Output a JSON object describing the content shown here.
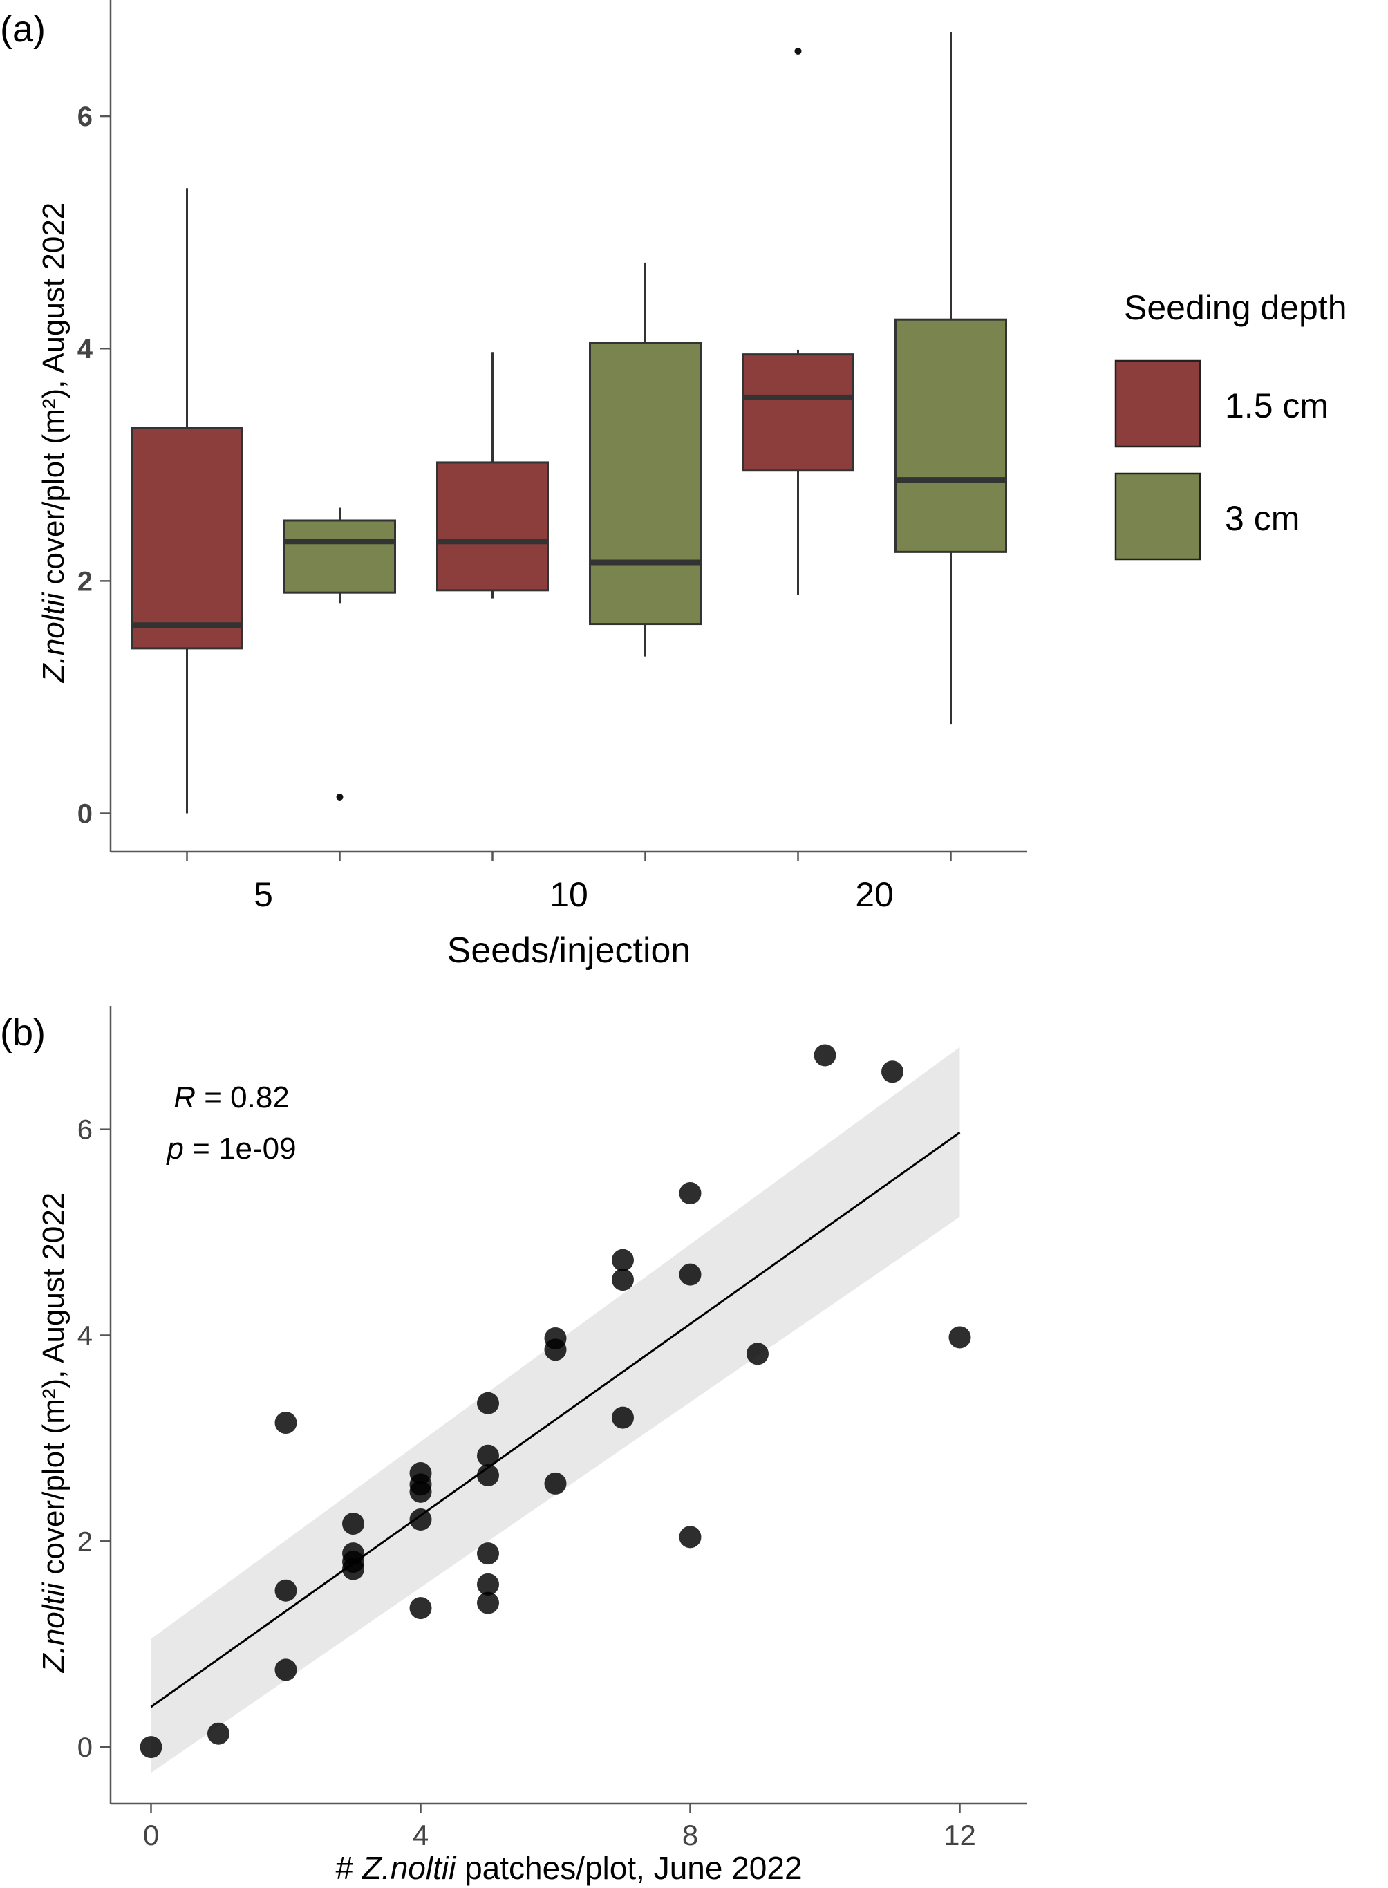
{
  "panel_a": {
    "tag": "(a)",
    "ylabel_italic": "Z.noltii",
    "ylabel_rest": " cover/plot (m²), August 2022",
    "xlabel": "Seeds/injection",
    "legend_title": "Seeding depth",
    "colors": {
      "1.5 cm": "#8b3e3c",
      "3 cm": "#7a844e"
    }
  },
  "panel_b": {
    "tag": "(b)",
    "ylabel_italic": "Z.noltii",
    "ylabel_rest": " cover/plot (m²), August 2022",
    "xlabel_prefix": "# ",
    "xlabel_italic": "Z.noltii",
    "xlabel_rest": " patches/plot, June 2022",
    "r_label": "R",
    "r_value": " = 0.82",
    "p_label": "p",
    "p_value": " = 1e-09"
  },
  "chart_data": [
    {
      "type": "box",
      "title": "",
      "xlabel": "Seeds/injection",
      "ylabel": "Z.noltii cover/plot (m²), August 2022",
      "categories": [
        "5",
        "10",
        "20"
      ],
      "yticks": [
        0,
        2,
        4,
        6
      ],
      "ylim": [
        -0.33,
        7.0
      ],
      "legend": {
        "title": "Seeding depth",
        "position": "right",
        "entries": [
          "1.5 cm",
          "3 cm"
        ]
      },
      "grid": false,
      "series": [
        {
          "name": "1.5 cm",
          "boxes": [
            {
              "category": "5",
              "min": 0.0,
              "q1": 1.42,
              "median": 1.62,
              "q3": 3.32,
              "max": 5.38,
              "outliers": []
            },
            {
              "category": "10",
              "min": 1.85,
              "q1": 1.92,
              "median": 2.34,
              "q3": 3.02,
              "max": 3.97,
              "outliers": []
            },
            {
              "category": "20",
              "min": 1.88,
              "q1": 2.95,
              "median": 3.58,
              "q3": 3.95,
              "max": 3.99,
              "outliers": [
                6.56
              ]
            }
          ]
        },
        {
          "name": "3 cm",
          "boxes": [
            {
              "category": "5",
              "min": 1.81,
              "q1": 1.9,
              "median": 2.34,
              "q3": 2.52,
              "max": 2.63,
              "outliers": [
                0.14
              ]
            },
            {
              "category": "10",
              "min": 1.35,
              "q1": 1.63,
              "median": 2.16,
              "q3": 4.05,
              "max": 4.74,
              "outliers": []
            },
            {
              "category": "20",
              "min": 0.77,
              "q1": 2.25,
              "median": 2.87,
              "q3": 4.25,
              "max": 6.72,
              "outliers": []
            }
          ]
        }
      ]
    },
    {
      "type": "scatter",
      "title": "",
      "xlabel": "# Z.noltii patches/plot, June 2022",
      "ylabel": "Z.noltii cover/plot (m²), August 2022",
      "xticks": [
        0,
        4,
        8,
        12
      ],
      "yticks": [
        0,
        2,
        4,
        6
      ],
      "xlim": [
        -0.6,
        13.0
      ],
      "ylim": [
        -0.55,
        7.2
      ],
      "grid": false,
      "annotations": [
        "R = 0.82",
        "p = 1e-09"
      ],
      "points": [
        [
          0,
          0.0
        ],
        [
          1,
          0.13
        ],
        [
          2,
          0.75
        ],
        [
          2,
          1.52
        ],
        [
          2,
          3.15
        ],
        [
          3,
          1.73
        ],
        [
          3,
          1.8
        ],
        [
          3,
          1.88
        ],
        [
          3,
          2.17
        ],
        [
          4,
          1.35
        ],
        [
          4,
          2.21
        ],
        [
          4,
          2.48
        ],
        [
          4,
          2.55
        ],
        [
          4,
          2.66
        ],
        [
          5,
          1.4
        ],
        [
          5,
          1.58
        ],
        [
          5,
          1.88
        ],
        [
          5,
          2.64
        ],
        [
          5,
          2.83
        ],
        [
          5,
          3.34
        ],
        [
          6,
          2.56
        ],
        [
          6,
          3.86
        ],
        [
          6,
          3.97
        ],
        [
          7,
          3.2
        ],
        [
          7,
          4.54
        ],
        [
          7,
          4.73
        ],
        [
          8,
          2.04
        ],
        [
          8,
          4.59
        ],
        [
          8,
          5.38
        ],
        [
          9,
          3.82
        ],
        [
          10,
          6.72
        ],
        [
          11,
          6.56
        ],
        [
          12,
          3.98
        ]
      ],
      "fit": {
        "method": "linear",
        "intercept": 0.39,
        "slope": 0.465,
        "ci_lower": [
          -0.25,
          5.15
        ],
        "ci_upper": [
          1.05,
          6.8
        ]
      }
    }
  ]
}
